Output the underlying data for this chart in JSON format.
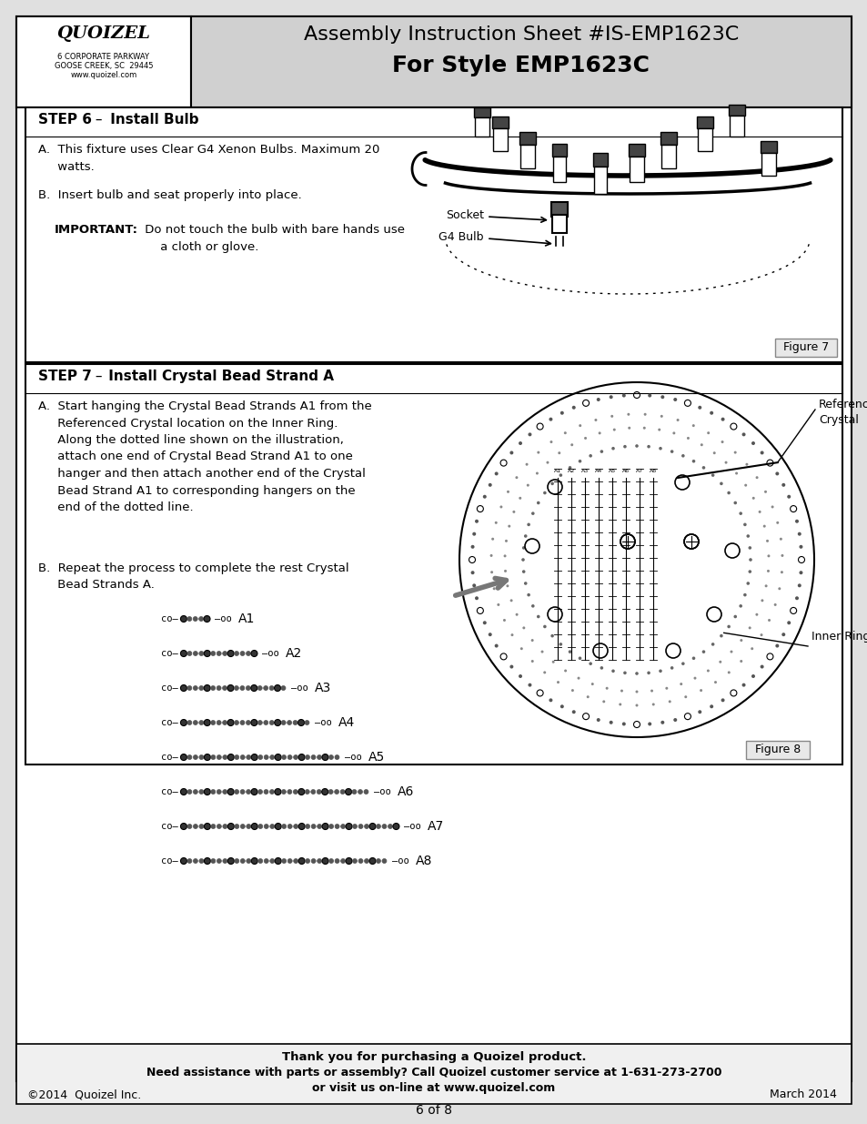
{
  "bg_color": "#e0e0e0",
  "page_bg": "#ffffff",
  "header_bg": "#d0d0d0",
  "title_line1": "Assembly Instruction Sheet #IS-EMP1623C",
  "title_line2": "For Style EMP1623C",
  "quoizel_name": "QUOIZEL",
  "quoizel_addr1": "6 CORPORATE PARKWAY",
  "quoizel_addr2": "GOOSE CREEK, SC  29445",
  "quoizel_web": "www.quoizel.com",
  "step6_label": "STEP 6",
  "step6_dash": " – ",
  "step6_rest": " Install Bulb",
  "step6_a_text": "A.  This fixture uses Clear G4 Xenon Bulbs. Maximum 20\n     watts.",
  "step6_b_text": "B.  Insert bulb and seat properly into place.",
  "step6_imp_bold": "IMPORTANT:",
  "step6_imp_rest": " Do not touch the bulb with bare hands use\n     a cloth or glove.",
  "step7_label": "STEP 7",
  "step7_dash": " – ",
  "step7_rest": " Install Crystal Bead Strand A",
  "step7_a": "A.  Start hanging the Crystal Bead Strands A1 from the\n     Referenced Crystal location on the Inner Ring.\n     Along the dotted line shown on the illustration,\n     attach one end of Crystal Bead Strand A1 to one\n     hanger and then attach another end of the Crystal\n     Bead Strand A1 to corresponding hangers on the\n     end of the dotted line.",
  "step7_b": "B.  Repeat the process to complete the rest Crystal\n     Bead Strands A.",
  "strands": [
    "A1",
    "A2",
    "A3",
    "A4",
    "A5",
    "A6",
    "A7",
    "A8"
  ],
  "strand_bead_counts": [
    5,
    13,
    18,
    22,
    27,
    32,
    37,
    35
  ],
  "figure7_label": "Figure 7",
  "figure8_label": "Figure 8",
  "socket_label": "Socket",
  "g4bulb_label": "G4 Bulb",
  "ref_crystal_label": "Referenced\nCrystal",
  "inner_ring_label": "Inner Ring",
  "footer_line1": "Thank you for purchasing a Quoizel product.",
  "footer_line2": "Need assistance with parts or assembly? Call Quoizel customer service at 1-631-273-2700",
  "footer_line3": "or visit us on-line at www.quoizel.com",
  "copyright": "©2014  Quoizel Inc.",
  "date": "March 2014",
  "page": "6 of 8"
}
